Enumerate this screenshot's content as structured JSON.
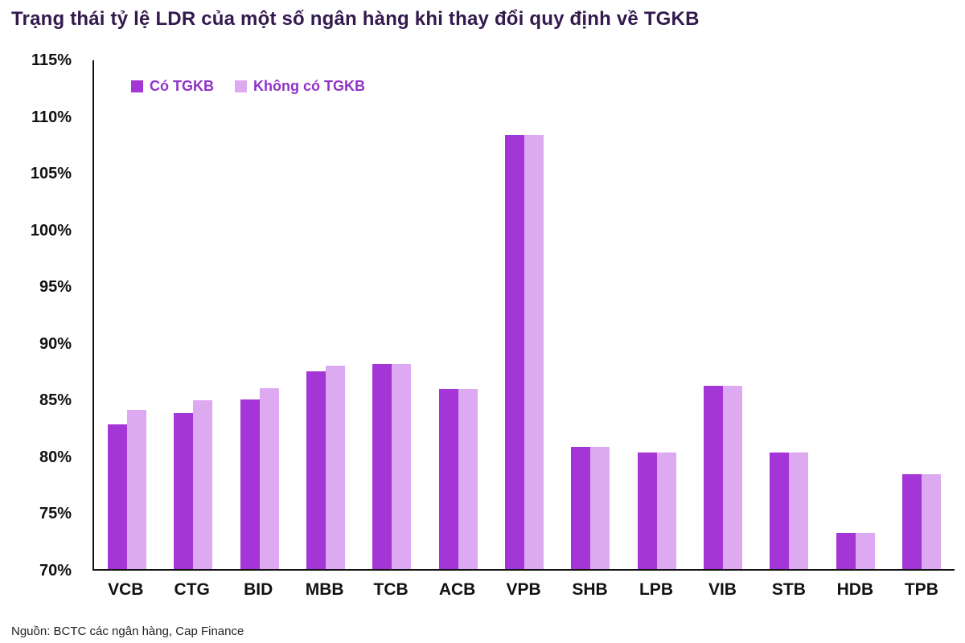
{
  "title": "Trạng thái tỷ lệ LDR của một số ngân hàng khi thay đổi quy định về TGKB",
  "source": "Nguồn: BCTC các ngân hàng, Cap Finance",
  "colors": {
    "title": "#33194d",
    "axis": "#111111",
    "legend_text": "#9032c8"
  },
  "chart_data": {
    "type": "bar",
    "title": "Trạng thái tỷ lệ LDR của một số ngân hàng khi thay đổi quy định về TGKB",
    "categories": [
      "VCB",
      "CTG",
      "BID",
      "MBB",
      "TCB",
      "ACB",
      "VPB",
      "SHB",
      "LPB",
      "VIB",
      "STB",
      "HDB",
      "TPB"
    ],
    "series": [
      {
        "name": "Có TGKB",
        "color": "#a435d6",
        "values": [
          82.8,
          83.8,
          85.0,
          87.5,
          88.1,
          85.9,
          108.4,
          80.8,
          80.3,
          86.2,
          80.3,
          73.2,
          78.4
        ]
      },
      {
        "name": "Không có TGKB",
        "color": "#dda9f1",
        "values": [
          84.1,
          84.9,
          86.0,
          88.0,
          88.1,
          85.9,
          108.4,
          80.8,
          80.3,
          86.2,
          80.3,
          73.2,
          78.4
        ]
      }
    ],
    "xlabel": "",
    "ylabel": "",
    "ylim": [
      70,
      115
    ],
    "ytick_step": 5,
    "ytick_format": "percent",
    "grid": false,
    "legend_position": "top-left"
  }
}
